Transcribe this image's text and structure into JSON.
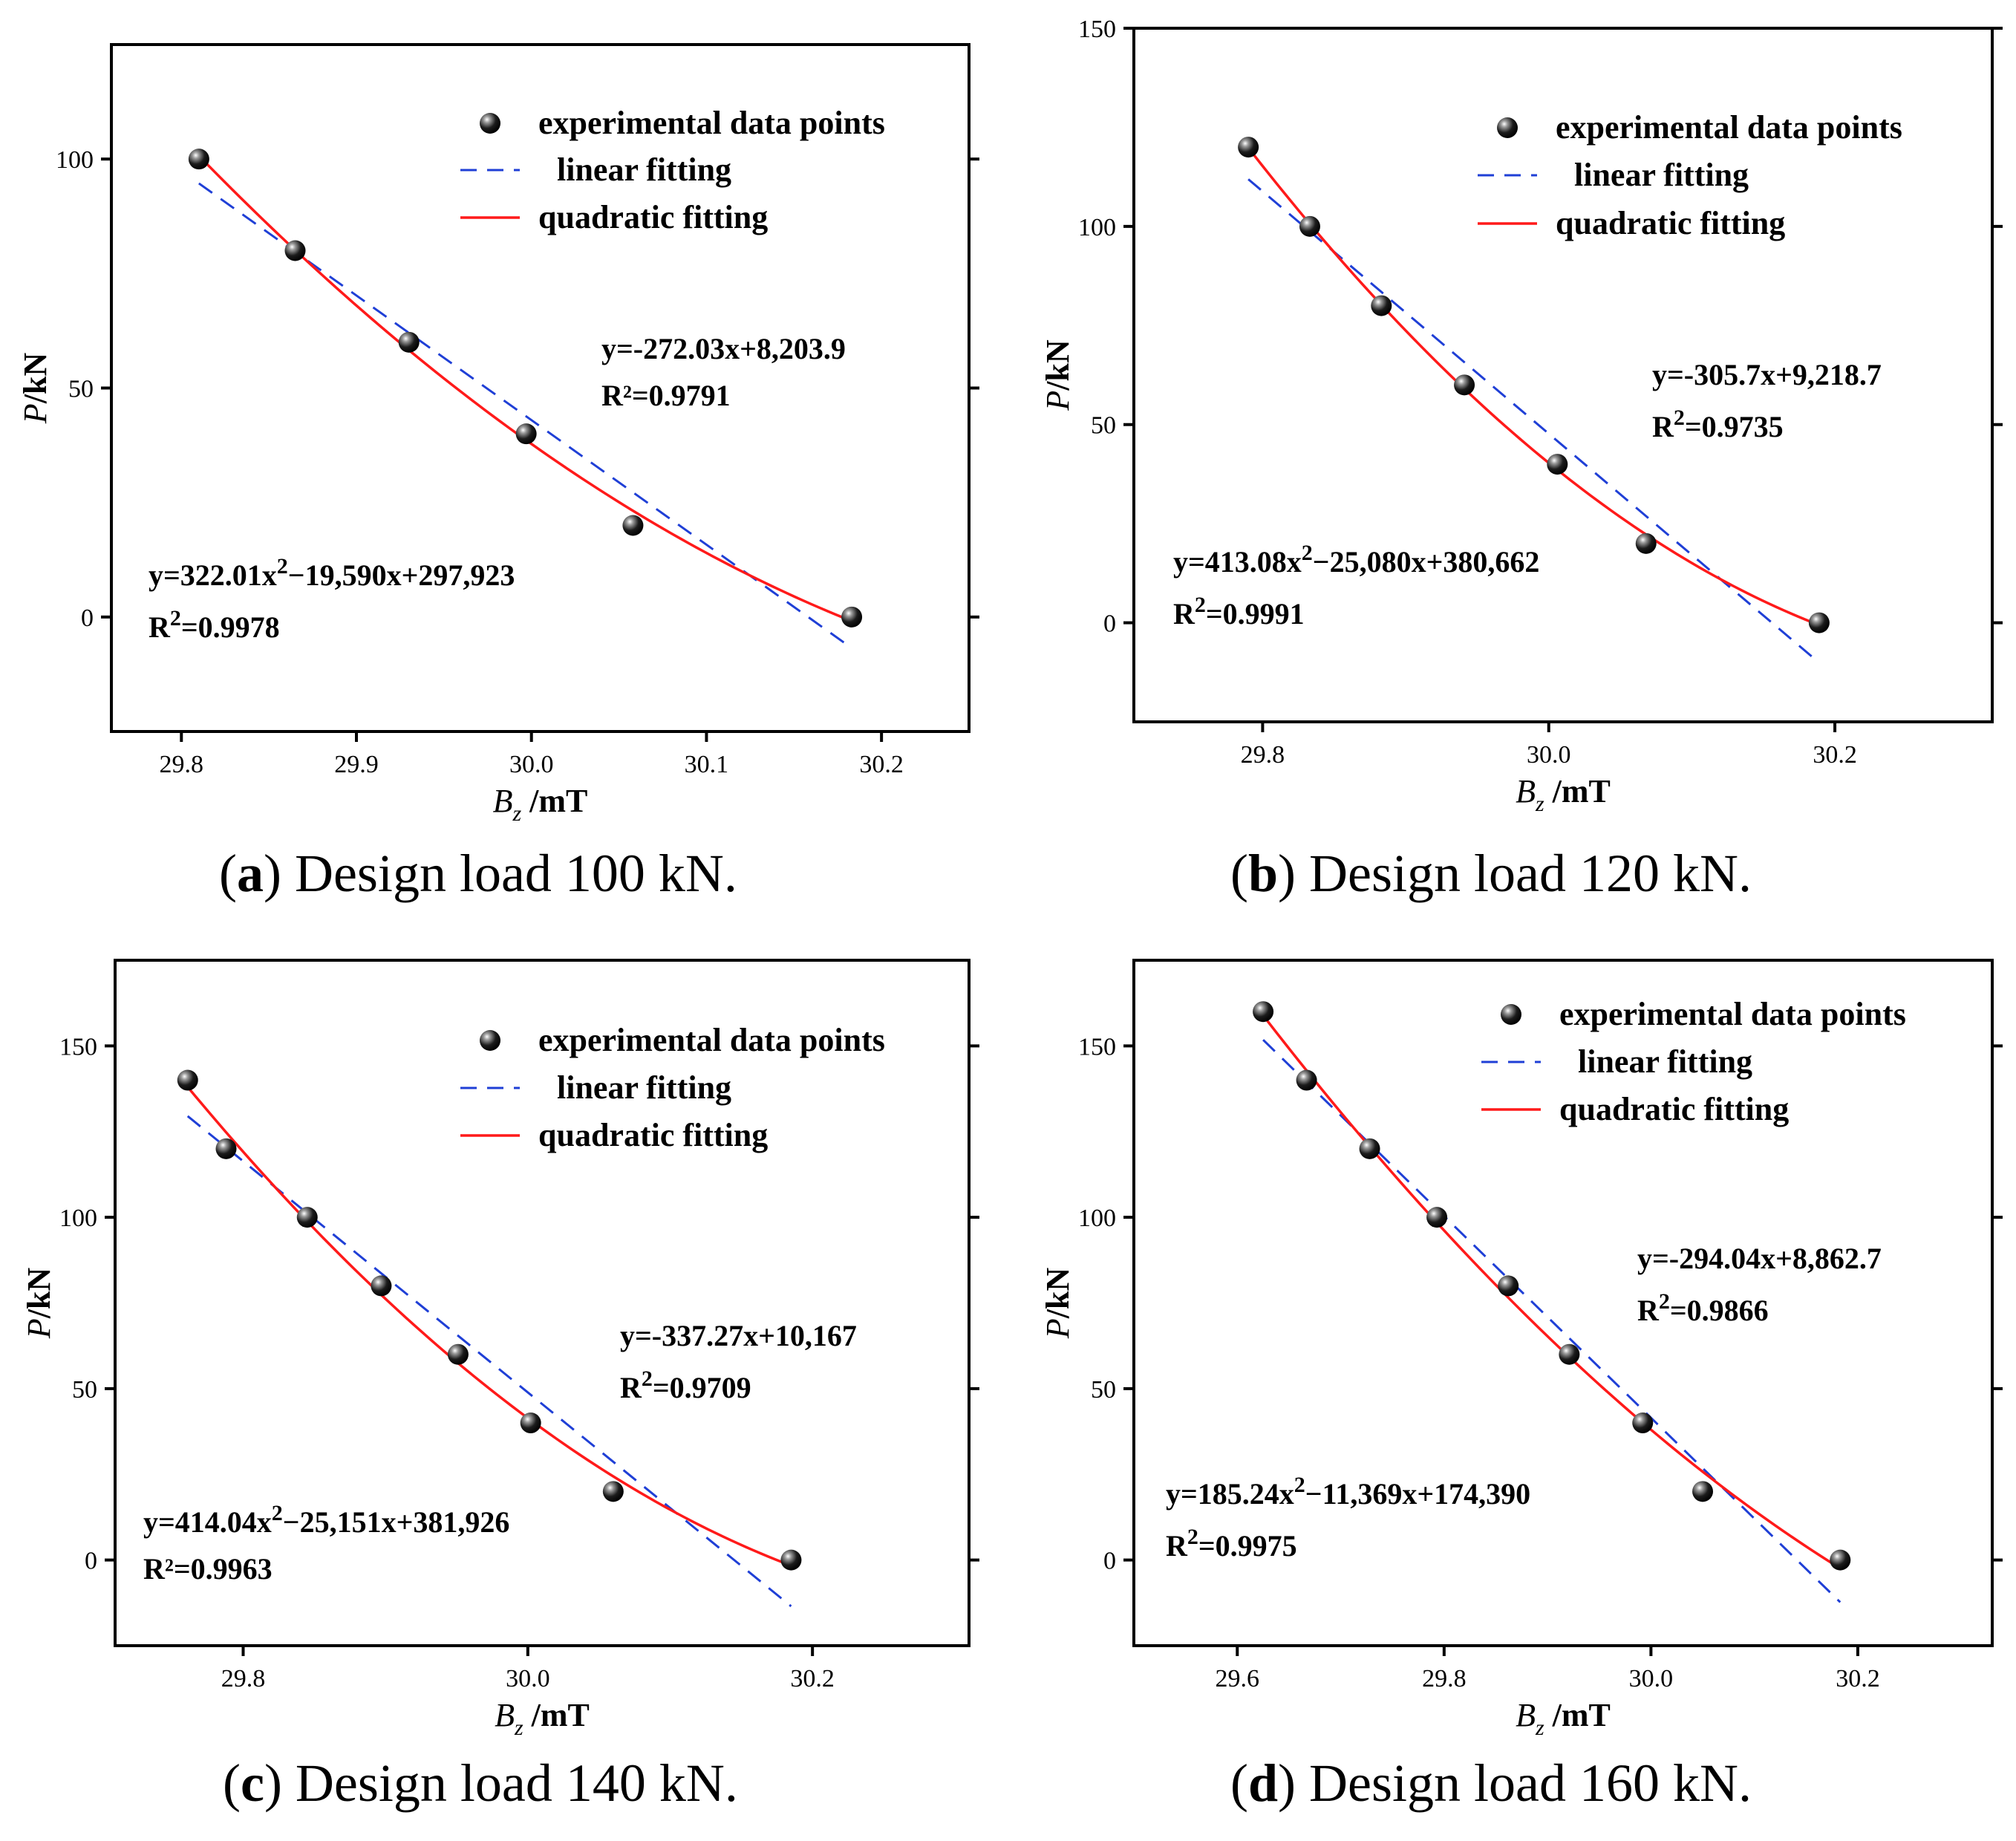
{
  "chart_data": [
    {
      "type": "scatter",
      "panel": "a",
      "caption_letter": "a",
      "caption_text": ") Design load 100 kN.",
      "xlabel_main": "B",
      "xlabel_sub": "z",
      "xlabel_unit": " /mT",
      "ylabel_main": "P",
      "ylabel_unit": "/kN",
      "xlim": [
        29.76,
        30.25
      ],
      "ylim": [
        -25,
        125
      ],
      "xticks": [
        29.8,
        29.9,
        30.0,
        30.1,
        30.2
      ],
      "xtick_labels": [
        "29.8",
        "29.9",
        "30.0",
        "30.1",
        "30.2"
      ],
      "yticks": [
        0,
        50,
        100
      ],
      "ytick_labels": [
        "0",
        "50",
        "100"
      ],
      "points": {
        "x": [
          29.81,
          29.865,
          29.93,
          29.997,
          30.058,
          30.183
        ],
        "y": [
          100,
          80,
          60,
          40,
          20,
          0
        ]
      },
      "linear_fit": {
        "slope": -272.03,
        "intercept": 8203.9,
        "x_range": [
          29.81,
          30.183
        ]
      },
      "quadratic_fit": {
        "a": 322.01,
        "b": -19590,
        "c": 297923,
        "x_range": [
          29.81,
          30.183
        ]
      },
      "legend": [
        "experimental data points",
        "linear fitting",
        "quadratic fitting"
      ],
      "linear_eq": "y=-272.03x+8,203.9",
      "linear_r2": "R²=0.9791",
      "quad_eq_pre": "y=322.01x",
      "quad_eq_post": "−19,590x+297,923",
      "quad_r2_label": "R",
      "quad_r2_value": "=0.9978"
    },
    {
      "type": "scatter",
      "panel": "b",
      "caption_letter": "b",
      "caption_text": ") Design load 120 kN.",
      "xlabel_main": "B",
      "xlabel_sub": "z",
      "xlabel_unit": " /mT",
      "ylabel_main": "P",
      "ylabel_unit": "/kN",
      "xlim": [
        29.71,
        30.31
      ],
      "ylim": [
        -25,
        150
      ],
      "xticks": [
        29.8,
        30.0,
        30.2
      ],
      "xtick_labels": [
        "29.8",
        "30.0",
        "30.2"
      ],
      "yticks": [
        0,
        50,
        100,
        150
      ],
      "ytick_labels": [
        "0",
        "50",
        "100",
        "150"
      ],
      "points": {
        "x": [
          29.79,
          29.833,
          29.883,
          29.941,
          30.006,
          30.068,
          30.189
        ],
        "y": [
          120,
          100,
          80,
          60,
          40,
          20,
          0
        ]
      },
      "linear_fit": {
        "slope": -305.7,
        "intercept": 9218.7,
        "x_range": [
          29.79,
          30.189
        ]
      },
      "quadratic_fit": {
        "a": 413.08,
        "b": -25080,
        "c": 380662,
        "x_range": [
          29.79,
          30.189
        ]
      },
      "legend": [
        "experimental data points",
        "linear fitting",
        "quadratic fitting"
      ],
      "linear_eq": "y=-305.7x+9,218.7",
      "linear_r2_label": "R",
      "linear_r2_value": "=0.9735",
      "quad_eq_pre": "y=413.08x",
      "quad_eq_post": "−25,080x+380,662",
      "quad_r2_label": "R",
      "quad_r2_value": "=0.9991"
    },
    {
      "type": "scatter",
      "panel": "c",
      "caption_letter": "c",
      "caption_text": ") Design load 140 kN.",
      "xlabel_main": "B",
      "xlabel_sub": "z",
      "xlabel_unit": " /mT",
      "ylabel_main": "P",
      "ylabel_unit": "/kN",
      "xlim": [
        29.71,
        30.31
      ],
      "ylim": [
        -25,
        175
      ],
      "xticks": [
        29.8,
        30.0,
        30.2
      ],
      "xtick_labels": [
        "29.8",
        "30.0",
        "30.2"
      ],
      "yticks": [
        0,
        50,
        100,
        150
      ],
      "ytick_labels": [
        "0",
        "50",
        "100",
        "150"
      ],
      "points": {
        "x": [
          29.761,
          29.788,
          29.845,
          29.897,
          29.951,
          30.002,
          30.06,
          30.185
        ],
        "y": [
          140,
          120,
          100,
          80,
          60,
          40,
          20,
          0
        ]
      },
      "linear_fit": {
        "slope": -337.27,
        "intercept": 10167,
        "x_range": [
          29.761,
          30.185
        ]
      },
      "quadratic_fit": {
        "a": 414.04,
        "b": -25151,
        "c": 381926,
        "x_range": [
          29.761,
          30.185
        ]
      },
      "legend": [
        "experimental data points",
        "linear fitting",
        "quadratic fitting"
      ],
      "linear_eq": "y=-337.27x+10,167",
      "linear_r2_label": "R",
      "linear_r2_value": "=0.9709",
      "quad_eq_pre": "y=414.04x",
      "quad_eq_post": "−25,151x+381,926",
      "quad_r2": "R²=0.9963"
    },
    {
      "type": "scatter",
      "panel": "d",
      "caption_letter": "d",
      "caption_text": ") Design load 160 kN.",
      "xlabel_main": "B",
      "xlabel_sub": "z",
      "xlabel_unit": " /mT",
      "ylabel_main": "P",
      "ylabel_unit": "/kN",
      "xlim": [
        29.5,
        30.33
      ],
      "ylim": [
        -25,
        175
      ],
      "xticks": [
        29.6,
        29.8,
        30.0,
        30.2
      ],
      "xtick_labels": [
        "29.6",
        "29.8",
        "30.0",
        "30.2"
      ],
      "yticks": [
        0,
        50,
        100,
        150
      ],
      "ytick_labels": [
        "0",
        "50",
        "100",
        "150"
      ],
      "points": {
        "x": [
          29.625,
          29.667,
          29.728,
          29.793,
          29.862,
          29.921,
          29.992,
          30.05,
          30.183
        ],
        "y": [
          160,
          140,
          120,
          100,
          80,
          60,
          40,
          20,
          0
        ]
      },
      "linear_fit": {
        "slope": -294.04,
        "intercept": 8862.7,
        "x_range": [
          29.625,
          30.183
        ]
      },
      "quadratic_fit": {
        "a": 185.24,
        "b": -11369,
        "c": 174390,
        "x_range": [
          29.625,
          30.183
        ]
      },
      "legend": [
        "experimental data points",
        "linear fitting",
        "quadratic fitting"
      ],
      "linear_eq": "y=-294.04x+8,862.7",
      "linear_r2_label": "R",
      "linear_r2_value": "=0.9866",
      "quad_eq_pre": "y=185.24x",
      "quad_eq_post": "−11,369x+174,390",
      "quad_r2_label": "R",
      "quad_r2_value": "=0.9975"
    }
  ],
  "superscript": "2",
  "colors": {
    "linear": "#1f3fd6",
    "quadratic": "#ff1a1a",
    "point": "#111111",
    "axis": "#000000"
  }
}
